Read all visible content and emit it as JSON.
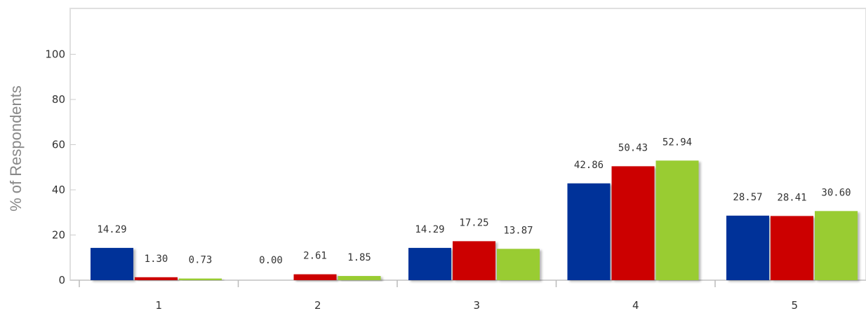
{
  "chart_data": {
    "type": "bar",
    "categories": [
      "1",
      "2",
      "3",
      "4",
      "5"
    ],
    "series": [
      {
        "values": [
          14.29,
          0.0,
          14.29,
          42.86,
          28.57
        ],
        "labels": [
          "14.29",
          "0.00",
          "14.29",
          "42.86",
          "28.57"
        ],
        "color": "#003399"
      },
      {
        "values": [
          1.3,
          2.61,
          17.25,
          50.43,
          28.41
        ],
        "labels": [
          "1.30",
          "2.61",
          "17.25",
          "50.43",
          "28.41"
        ],
        "color": "#cc0000"
      },
      {
        "values": [
          0.73,
          1.85,
          13.87,
          52.94,
          30.6
        ],
        "labels": [
          "0.73",
          "1.85",
          "13.87",
          "52.94",
          "30.60"
        ],
        "color": "#99cc33"
      }
    ],
    "title": "",
    "xlabel": "",
    "ylabel": "% of Respondents",
    "ylim": [
      0,
      100
    ],
    "yticks": [
      "0",
      "20",
      "40",
      "60",
      "80",
      "100"
    ],
    "grid": false,
    "legend": "none"
  }
}
